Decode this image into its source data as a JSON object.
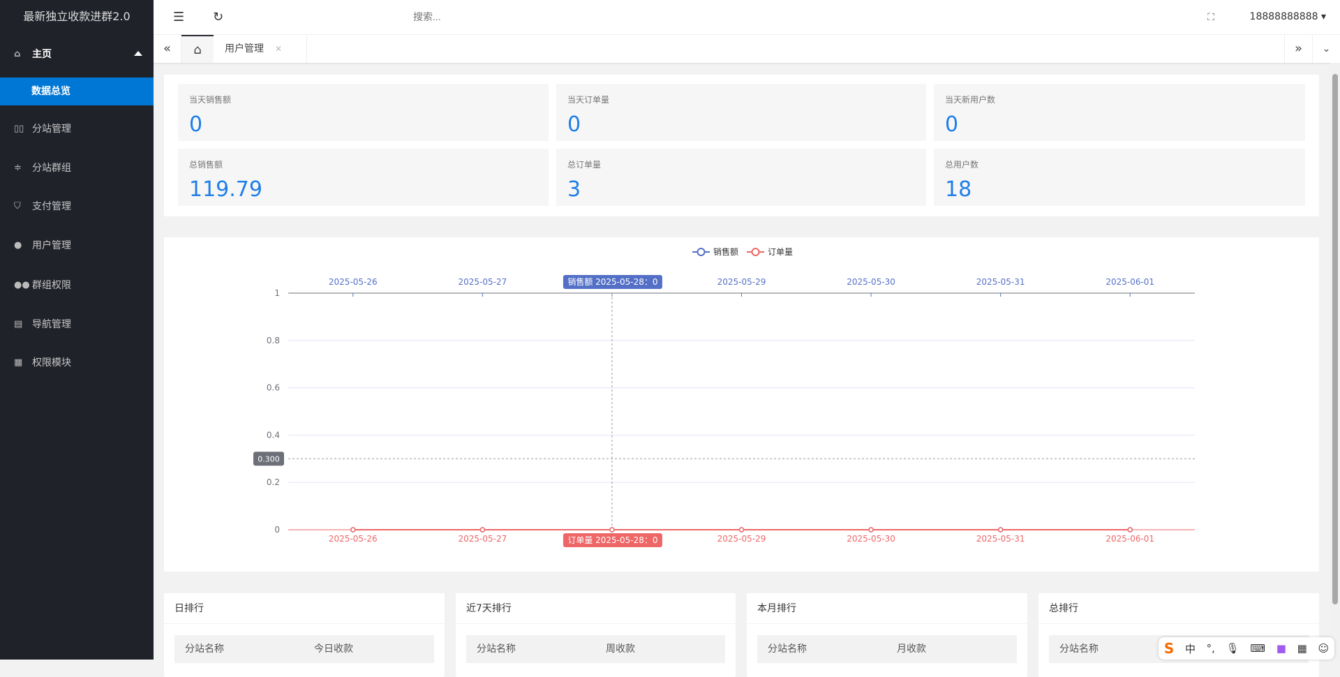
{
  "app_title": "最新独立收款进群2.0",
  "sidebar": {
    "home": "主页",
    "active_sub": "数据总览",
    "items": [
      {
        "label": "分站管理",
        "icon": "columns-icon"
      },
      {
        "label": "分站群组",
        "icon": "sliders-icon"
      },
      {
        "label": "支付管理",
        "icon": "shield-check-icon"
      },
      {
        "label": "用户管理",
        "icon": "user-icon"
      },
      {
        "label": "群组权限",
        "icon": "users-icon"
      },
      {
        "label": "导航管理",
        "icon": "cards-icon"
      },
      {
        "label": "权限模块",
        "icon": "grid-icon"
      }
    ]
  },
  "topbar": {
    "search_placeholder": "搜索...",
    "user": "18888888888"
  },
  "tabs": [
    {
      "label": "用户管理"
    }
  ],
  "stats": [
    {
      "label": "当天销售额",
      "value": "0"
    },
    {
      "label": "当天订单量",
      "value": "0"
    },
    {
      "label": "当天新用户数",
      "value": "0"
    },
    {
      "label": "总销售额",
      "value": "119.79"
    },
    {
      "label": "总订单量",
      "value": "3"
    },
    {
      "label": "总用户数",
      "value": "18"
    }
  ],
  "chart_data": {
    "type": "line",
    "categories": [
      "2025-05-26",
      "2025-05-27",
      "2025-05-28",
      "2025-05-29",
      "2025-05-30",
      "2025-05-31",
      "2025-06-01"
    ],
    "series": [
      {
        "name": "销售额",
        "values": [
          0,
          0,
          0,
          0,
          0,
          0,
          0
        ],
        "color": "#5470c6"
      },
      {
        "name": "订单量",
        "values": [
          0,
          0,
          0,
          0,
          0,
          0,
          0
        ],
        "color": "#ee6666"
      }
    ],
    "ylim": [
      0,
      1
    ],
    "yticks": [
      "0",
      "0.2",
      "0.4",
      "0.6",
      "0.8",
      "1"
    ],
    "legend": "top-center",
    "tooltip_top": "销售额  2025-05-28：0",
    "tooltip_bottom": "订单量  2025-05-28：0",
    "crosshair_y": "0.300"
  },
  "rankings": [
    {
      "title": "日排行",
      "col1": "分站名称",
      "col2": "今日收款"
    },
    {
      "title": "近7天排行",
      "col1": "分站名称",
      "col2": "周收款"
    },
    {
      "title": "本月排行",
      "col1": "分站名称",
      "col2": "月收款"
    },
    {
      "title": "总排行",
      "col1": "分站名称",
      "col2": ""
    }
  ],
  "ime": {
    "mode": "中"
  }
}
